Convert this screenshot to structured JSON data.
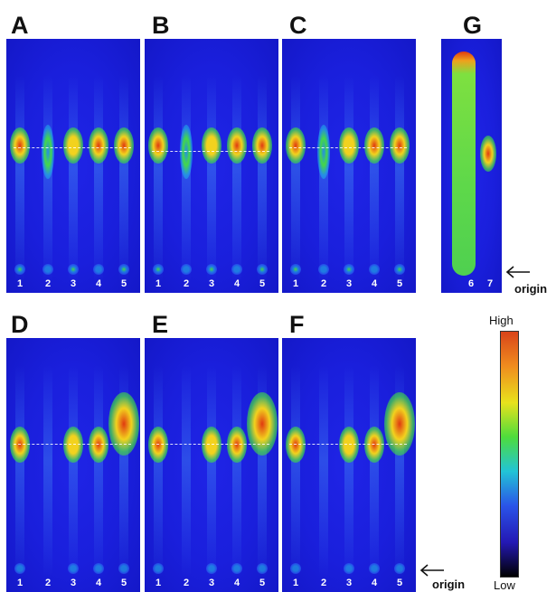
{
  "panels": [
    {
      "letter": "A",
      "lanes": [
        "1",
        "2",
        "3",
        "4",
        "5"
      ]
    },
    {
      "letter": "B",
      "lanes": [
        "1",
        "2",
        "3",
        "4",
        "5"
      ]
    },
    {
      "letter": "C",
      "lanes": [
        "1",
        "2",
        "3",
        "4",
        "5"
      ]
    },
    {
      "letter": "D",
      "lanes": [
        "1",
        "2",
        "3",
        "4",
        "5"
      ]
    },
    {
      "letter": "E",
      "lanes": [
        "1",
        "2",
        "3",
        "4",
        "5"
      ]
    },
    {
      "letter": "F",
      "lanes": [
        "1",
        "2",
        "3",
        "4",
        "5"
      ]
    },
    {
      "letter": "G",
      "lanes": [
        "6",
        "7"
      ]
    }
  ],
  "origin_label": "origin",
  "scale": {
    "high": "High",
    "low": "Low"
  },
  "colors": {
    "background": "#1a1fdc",
    "spot_hot": "#e03a10",
    "spot_warm": "#f2d21e",
    "spot_mid": "#44d848",
    "spot_cool": "#20b8e8",
    "colorbar": [
      "#d9441a",
      "#f08c1e",
      "#e8e21c",
      "#4edc3c",
      "#22c4d6",
      "#2a54e8",
      "#2418b4",
      "#000000"
    ]
  }
}
